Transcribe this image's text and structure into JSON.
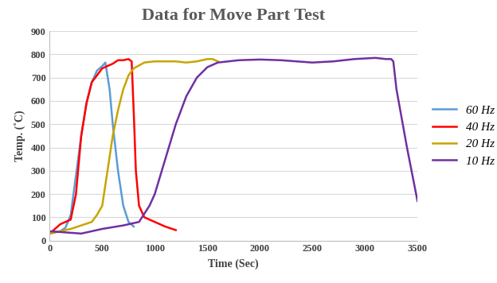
{
  "chart_data": {
    "type": "line",
    "title": "Data for Move Part Test",
    "x_label": "Time (Sec)",
    "y_label": "Temp. (˚C)",
    "xlim": [
      0,
      3500
    ],
    "xticks": [
      0,
      500,
      1000,
      1500,
      2000,
      2500,
      3000,
      3500
    ],
    "ylim": [
      0,
      900
    ],
    "yticks": [
      0,
      100,
      200,
      300,
      400,
      500,
      600,
      700,
      800,
      900
    ],
    "grid": true,
    "legend": "center left",
    "series": [
      {
        "name": "60 Hz",
        "color": "#5B9BD5",
        "x": [
          0,
          100,
          150,
          200,
          250,
          300,
          350,
          400,
          450,
          500,
          530,
          570,
          600,
          650,
          700,
          750,
          800
        ],
        "values": [
          30,
          40,
          55,
          110,
          280,
          450,
          590,
          680,
          730,
          750,
          765,
          650,
          500,
          300,
          150,
          80,
          60
        ]
      },
      {
        "name": "40 Hz",
        "color": "#FF0000",
        "x": [
          0,
          100,
          200,
          250,
          300,
          350,
          400,
          500,
          600,
          650,
          700,
          750,
          780,
          800,
          820,
          850,
          900,
          1000,
          1100,
          1200
        ],
        "values": [
          30,
          70,
          90,
          200,
          450,
          590,
          680,
          740,
          760,
          775,
          775,
          780,
          770,
          550,
          300,
          150,
          100,
          80,
          60,
          45
        ]
      },
      {
        "name": "20 Hz",
        "color": "#C9A400",
        "x": [
          0,
          100,
          200,
          300,
          400,
          450,
          500,
          550,
          600,
          650,
          700,
          750,
          800,
          900,
          1000,
          1200,
          1300,
          1400,
          1500,
          1550,
          1600
        ],
        "values": [
          30,
          40,
          50,
          65,
          80,
          110,
          150,
          300,
          450,
          560,
          650,
          710,
          740,
          765,
          770,
          770,
          765,
          770,
          780,
          780,
          770
        ]
      },
      {
        "name": "10 Hz",
        "color": "#7030A0",
        "x": [
          0,
          300,
          500,
          700,
          850,
          950,
          1000,
          1100,
          1200,
          1300,
          1400,
          1500,
          1600,
          1800,
          2000,
          2200,
          2500,
          2700,
          2900,
          3100,
          3200,
          3250,
          3270,
          3300,
          3400,
          3500
        ],
        "values": [
          40,
          30,
          50,
          65,
          80,
          150,
          200,
          350,
          500,
          620,
          700,
          745,
          765,
          775,
          778,
          775,
          765,
          770,
          780,
          785,
          780,
          780,
          770,
          650,
          400,
          170
        ]
      }
    ]
  }
}
